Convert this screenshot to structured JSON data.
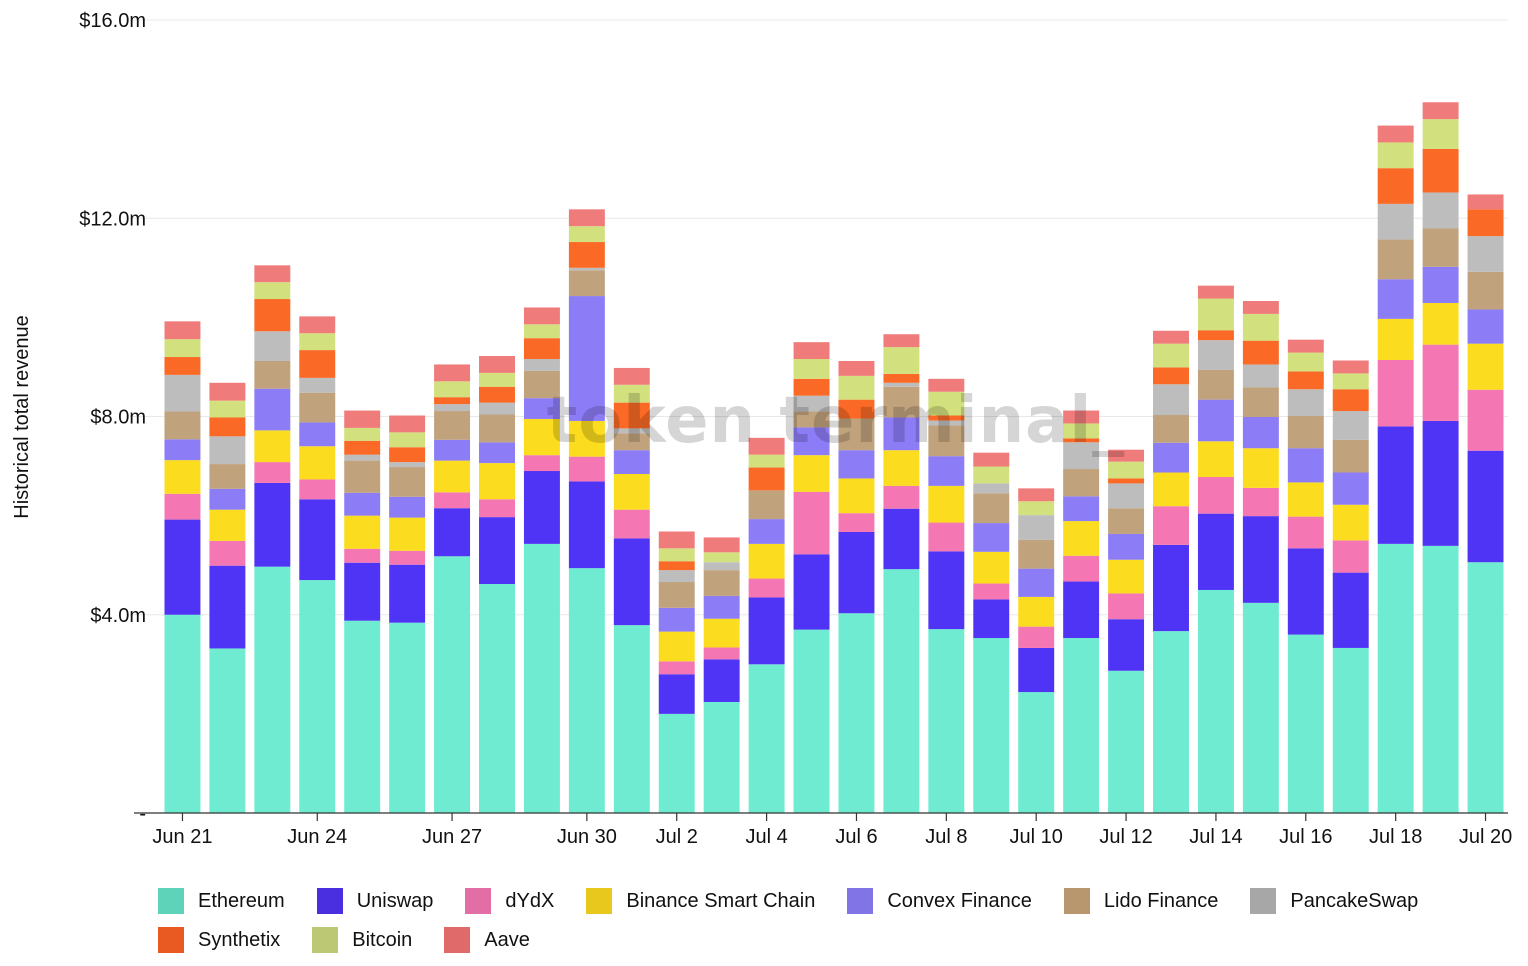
{
  "chart_data": {
    "type": "bar",
    "stacked": true,
    "title": "",
    "xlabel": "",
    "ylabel": "Historical total revenue",
    "ylim": [
      0,
      16
    ],
    "yticks": [
      {
        "value": 0,
        "label": "-"
      },
      {
        "value": 4,
        "label": "$4.0m"
      },
      {
        "value": 8,
        "label": "$8.0m"
      },
      {
        "value": 12,
        "label": "$12.0m"
      },
      {
        "value": 16,
        "label": "$16.0m"
      }
    ],
    "grid": true,
    "watermark": "token terminal_",
    "legend_position": "bottom",
    "categories": [
      "Jun 21",
      "Jun 22",
      "Jun 23",
      "Jun 24",
      "Jun 25",
      "Jun 26",
      "Jun 27",
      "Jun 28",
      "Jun 29",
      "Jun 30",
      "Jul 1",
      "Jul 2",
      "Jul 3",
      "Jul 4",
      "Jul 5",
      "Jul 6",
      "Jul 7",
      "Jul 8",
      "Jul 9",
      "Jul 10",
      "Jul 11",
      "Jul 12",
      "Jul 13",
      "Jul 14",
      "Jul 15",
      "Jul 16",
      "Jul 17",
      "Jul 18",
      "Jul 19",
      "Jul 20"
    ],
    "xtick_labels": [
      {
        "index": 0,
        "label": "Jun 21"
      },
      {
        "index": 3,
        "label": "Jun 24"
      },
      {
        "index": 6,
        "label": "Jun 27"
      },
      {
        "index": 9,
        "label": "Jun 30"
      },
      {
        "index": 11,
        "label": "Jul 2"
      },
      {
        "index": 13,
        "label": "Jul 4"
      },
      {
        "index": 15,
        "label": "Jul 6"
      },
      {
        "index": 17,
        "label": "Jul 8"
      },
      {
        "index": 19,
        "label": "Jul 10"
      },
      {
        "index": 21,
        "label": "Jul 12"
      },
      {
        "index": 23,
        "label": "Jul 14"
      },
      {
        "index": 25,
        "label": "Jul 16"
      },
      {
        "index": 27,
        "label": "Jul 18"
      },
      {
        "index": 29,
        "label": "Jul 20"
      }
    ],
    "series": [
      {
        "name": "Ethereum",
        "color": "#6EEBD0",
        "legend_color": "#5ED3BA",
        "values": [
          4.0,
          3.32,
          4.97,
          4.7,
          3.88,
          3.84,
          5.18,
          4.62,
          5.43,
          4.94,
          3.79,
          2.0,
          2.24,
          3.0,
          3.7,
          4.03,
          4.92,
          3.71,
          3.53,
          2.44,
          3.53,
          2.87,
          3.67,
          4.5,
          4.24,
          3.6,
          3.33,
          5.43,
          5.39,
          5.06
        ]
      },
      {
        "name": "Uniswap",
        "color": "#5034F5",
        "legend_color": "#4A2FE0",
        "values": [
          1.92,
          1.67,
          1.69,
          1.63,
          1.17,
          1.17,
          0.97,
          1.35,
          1.47,
          1.75,
          1.75,
          0.8,
          0.86,
          1.35,
          1.52,
          1.64,
          1.22,
          1.57,
          0.78,
          0.89,
          1.14,
          1.04,
          1.74,
          1.54,
          1.75,
          1.74,
          1.52,
          2.37,
          2.52,
          2.25
        ]
      },
      {
        "name": "dYdX",
        "color": "#F477B4",
        "legend_color": "#E36DA5",
        "values": [
          0.52,
          0.5,
          0.42,
          0.4,
          0.28,
          0.28,
          0.32,
          0.36,
          0.32,
          0.5,
          0.58,
          0.26,
          0.24,
          0.38,
          1.26,
          0.38,
          0.46,
          0.58,
          0.32,
          0.43,
          0.52,
          0.52,
          0.78,
          0.74,
          0.57,
          0.64,
          0.65,
          1.34,
          1.54,
          1.23
        ]
      },
      {
        "name": "Binance Smart Chain",
        "color": "#FCDC1E",
        "legend_color": "#E8C81C",
        "values": [
          0.68,
          0.63,
          0.64,
          0.67,
          0.67,
          0.67,
          0.64,
          0.73,
          0.73,
          0.72,
          0.72,
          0.6,
          0.58,
          0.7,
          0.74,
          0.7,
          0.72,
          0.74,
          0.64,
          0.6,
          0.7,
          0.68,
          0.68,
          0.72,
          0.8,
          0.69,
          0.72,
          0.83,
          0.84,
          0.93
        ]
      },
      {
        "name": "Convex Finance",
        "color": "#8C7CF6",
        "legend_color": "#8074E6",
        "values": [
          0.42,
          0.42,
          0.84,
          0.48,
          0.46,
          0.42,
          0.42,
          0.42,
          0.42,
          2.52,
          0.48,
          0.48,
          0.46,
          0.5,
          0.56,
          0.57,
          0.66,
          0.6,
          0.58,
          0.57,
          0.5,
          0.52,
          0.6,
          0.84,
          0.63,
          0.69,
          0.65,
          0.8,
          0.73,
          0.69
        ]
      },
      {
        "name": "Lido Finance",
        "color": "#C0A27D",
        "legend_color": "#B8966E",
        "values": [
          0.56,
          0.5,
          0.56,
          0.6,
          0.65,
          0.6,
          0.58,
          0.56,
          0.55,
          0.52,
          0.34,
          0.52,
          0.52,
          0.58,
          0.32,
          0.64,
          0.62,
          0.62,
          0.6,
          0.58,
          0.55,
          0.52,
          0.56,
          0.6,
          0.6,
          0.65,
          0.66,
          0.8,
          0.78,
          0.76
        ]
      },
      {
        "name": "PancakeSwap",
        "color": "#BDBDBD",
        "legend_color": "#A7A7A7",
        "values": [
          0.74,
          0.56,
          0.6,
          0.3,
          0.12,
          0.1,
          0.14,
          0.24,
          0.24,
          0.05,
          0.1,
          0.24,
          0.16,
          0.0,
          0.32,
          0.0,
          0.08,
          0.1,
          0.2,
          0.5,
          0.54,
          0.5,
          0.62,
          0.6,
          0.46,
          0.54,
          0.58,
          0.72,
          0.72,
          0.72
        ]
      },
      {
        "name": "Synthetix",
        "color": "#FA6925",
        "legend_color": "#E85A22",
        "values": [
          0.36,
          0.38,
          0.65,
          0.56,
          0.28,
          0.3,
          0.14,
          0.32,
          0.42,
          0.52,
          0.52,
          0.18,
          0.0,
          0.46,
          0.34,
          0.38,
          0.18,
          0.1,
          0.0,
          0.0,
          0.08,
          0.1,
          0.34,
          0.2,
          0.48,
          0.36,
          0.44,
          0.72,
          0.88,
          0.54
        ]
      },
      {
        "name": "Bitcoin",
        "color": "#D3E07E",
        "legend_color": "#BCC874",
        "values": [
          0.36,
          0.34,
          0.34,
          0.34,
          0.26,
          0.3,
          0.32,
          0.28,
          0.28,
          0.32,
          0.36,
          0.26,
          0.2,
          0.26,
          0.4,
          0.48,
          0.54,
          0.48,
          0.34,
          0.28,
          0.3,
          0.34,
          0.48,
          0.64,
          0.54,
          0.38,
          0.32,
          0.52,
          0.6,
          0.0
        ]
      },
      {
        "name": "Aave",
        "color": "#F07B7B",
        "legend_color": "#E06A6A",
        "values": [
          0.36,
          0.36,
          0.34,
          0.34,
          0.35,
          0.34,
          0.34,
          0.34,
          0.34,
          0.34,
          0.34,
          0.34,
          0.3,
          0.34,
          0.34,
          0.3,
          0.26,
          0.26,
          0.28,
          0.26,
          0.26,
          0.24,
          0.26,
          0.26,
          0.26,
          0.26,
          0.26,
          0.34,
          0.34,
          0.3
        ]
      }
    ]
  }
}
